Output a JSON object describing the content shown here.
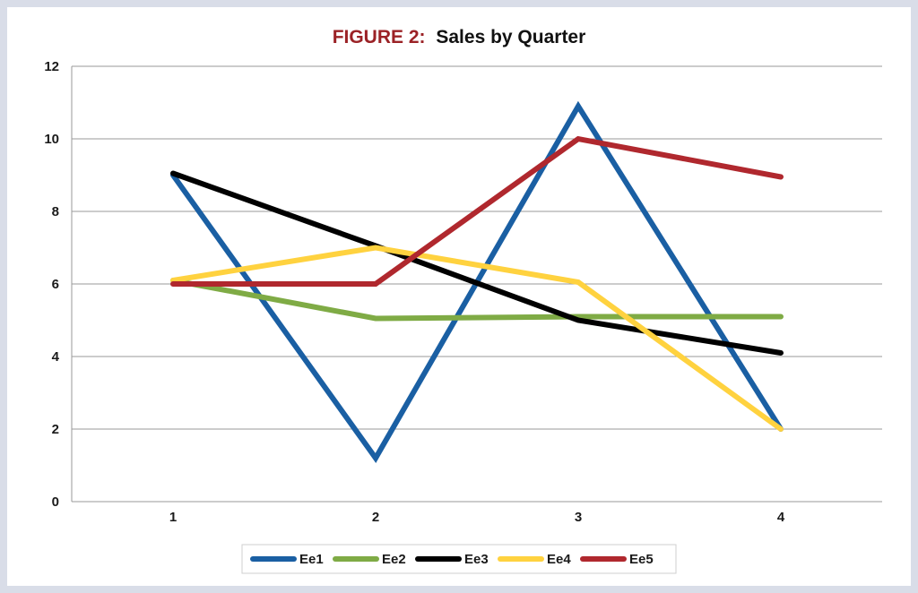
{
  "chart_data": {
    "type": "line",
    "title_prefix": "FIGURE 2:",
    "title": "Sales by Quarter",
    "xlabel": "",
    "ylabel": "",
    "categories": [
      "1",
      "2",
      "3",
      "4"
    ],
    "ylim": [
      0,
      12
    ],
    "yticks": [
      "0",
      "2",
      "4",
      "6",
      "8",
      "10",
      "12"
    ],
    "grid": true,
    "legend_position": "bottom",
    "series": [
      {
        "name": "Ee1",
        "color": "#1a5fa3",
        "values": [
          9,
          1.2,
          10.9,
          2
        ]
      },
      {
        "name": "Ee2",
        "color": "#7fab45",
        "values": [
          6.1,
          5.05,
          5.1,
          5.1
        ]
      },
      {
        "name": "Ee3",
        "color": "#000000",
        "values": [
          9.05,
          7.05,
          5,
          4.1
        ]
      },
      {
        "name": "Ee4",
        "color": "#ffd23f",
        "values": [
          6.1,
          7,
          6.05,
          2
        ]
      },
      {
        "name": "Ee5",
        "color": "#b0282e",
        "values": [
          6,
          6,
          10,
          8.95
        ]
      }
    ],
    "colors": {
      "page_background": "#d9dde8",
      "plot_background": "#ffffff",
      "gridline": "#9a9a9a",
      "title_prefix": "#9b2226"
    }
  }
}
